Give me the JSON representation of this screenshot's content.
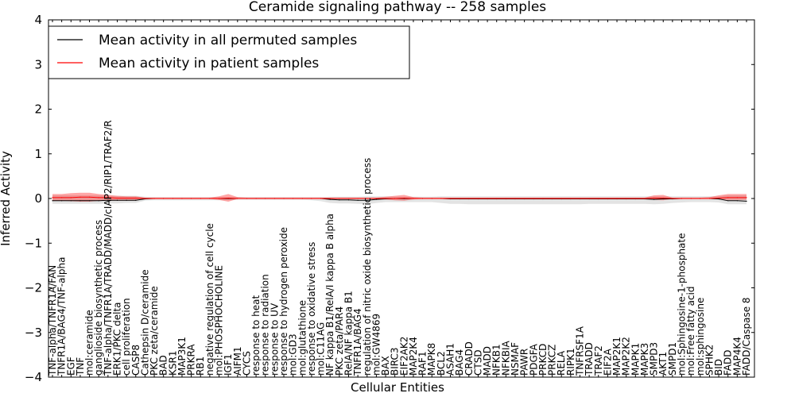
{
  "chart_data": {
    "type": "line",
    "title": "Ceramide signaling pathway -- 258 samples",
    "xlabel": "Cellular Entities",
    "ylabel": "Inferred Activity",
    "ylim": [
      -4,
      4
    ],
    "yticks": [
      -4,
      -3,
      -2,
      -1,
      0,
      1,
      2,
      3,
      4
    ],
    "legend_position": "top-left",
    "categories": [
      "TNF-alpha/TNFR1A/FAN",
      "TNFR1A/BAG4/TNF-alpha",
      "EGF",
      "TNF",
      "mol:ceramide",
      "ganglioside biosynthetic process",
      "TNF-alpha/TNFR1A/TRADD/MADD/cIAP2/RIP1/TRAF2/R",
      "ERK1/PKC delta",
      "cell proliferation",
      "CASP8",
      "Cathepsin D/ceramide",
      "PKC zeta/ceramide",
      "BAD",
      "KSR1",
      "MAP3K1",
      "PRKRA",
      "RB1",
      "negative regulation of cell cycle",
      "mol:PHOSPHOCHOLINE",
      "IGF1",
      "AIFM1",
      "CYCS",
      "response to heat",
      "response to radiation",
      "response to UV",
      "response to hydrogen peroxide",
      "mol:GD3",
      "mol:glutathione",
      "response to oxidative stress",
      "mol:C11AG",
      "NF kappa B1/RelA/I kappa B alpha",
      "PKC zeta/PAR4",
      "RelA/NF kappa B1",
      "TNFR1A/BAG4",
      "regulation of nitric oxide biosynthetic process",
      "mol:GW4869",
      "BAX",
      "BIRC3",
      "EIF2AK2",
      "MAP2K4",
      "RAF1",
      "MAPK8",
      "BCL2",
      "ASAH1",
      "BAG4",
      "CRADD",
      "CTSD",
      "MADD",
      "NFKB1",
      "NFKBIA",
      "NSMAF",
      "PAWR",
      "PDGFA",
      "PRKCD",
      "PRKCZ",
      "RELA",
      "RIPK1",
      "TNFRSF1A",
      "TRADD",
      "TRAF2",
      "EIF2A",
      "MAP2K1",
      "MAP2K2",
      "MAPK1",
      "MAPK3",
      "SMPD3",
      "AKT1",
      "SMPD1",
      "mol:Sphingosine-1-phosphate",
      "mol:Free fatty acid",
      "mol:sphingosine",
      "SPHK2",
      "BID",
      "FADD",
      "MAP4K4",
      "FADD/Caspase 8"
    ],
    "series": [
      {
        "name": "Mean activity in all permuted samples",
        "color": "#000000",
        "values": [
          -0.05,
          -0.05,
          -0.05,
          -0.05,
          -0.05,
          -0.05,
          -0.04,
          -0.04,
          -0.04,
          -0.04,
          -0.01,
          0,
          0,
          0,
          0,
          0,
          0,
          0,
          0,
          0,
          0,
          0,
          0,
          0,
          0,
          0,
          0,
          0,
          0,
          0,
          -0.02,
          -0.03,
          -0.03,
          -0.04,
          -0.04,
          -0.02,
          -0.01,
          0,
          0,
          0,
          0,
          0,
          0,
          -0.01,
          -0.01,
          -0.01,
          -0.01,
          -0.01,
          -0.01,
          -0.01,
          -0.01,
          -0.01,
          -0.01,
          -0.01,
          -0.01,
          -0.01,
          -0.01,
          -0.01,
          -0.01,
          -0.01,
          -0.01,
          -0.01,
          -0.01,
          -0.01,
          -0.01,
          -0.02,
          -0.01,
          -0.01,
          0,
          0,
          0,
          0,
          -0.01,
          -0.05,
          -0.05,
          -0.06
        ],
        "band_low": [
          -0.12,
          -0.12,
          -0.12,
          -0.12,
          -0.12,
          -0.12,
          -0.11,
          -0.11,
          -0.1,
          -0.1,
          -0.05,
          -0.04,
          -0.04,
          -0.04,
          -0.04,
          -0.04,
          -0.04,
          -0.04,
          -0.04,
          -0.04,
          -0.03,
          -0.03,
          -0.03,
          -0.03,
          -0.03,
          -0.03,
          -0.03,
          -0.03,
          -0.04,
          -0.06,
          -0.1,
          -0.11,
          -0.11,
          -0.12,
          -0.13,
          -0.1,
          -0.08,
          -0.08,
          -0.08,
          -0.08,
          -0.08,
          -0.08,
          -0.1,
          -0.12,
          -0.12,
          -0.13,
          -0.13,
          -0.13,
          -0.13,
          -0.13,
          -0.13,
          -0.13,
          -0.13,
          -0.13,
          -0.13,
          -0.13,
          -0.13,
          -0.13,
          -0.12,
          -0.12,
          -0.12,
          -0.12,
          -0.12,
          -0.12,
          -0.12,
          -0.13,
          -0.12,
          -0.1,
          -0.09,
          -0.08,
          -0.08,
          -0.08,
          -0.09,
          -0.13,
          -0.13,
          -0.13
        ],
        "band_high": [
          0.07,
          0.07,
          0.07,
          0.07,
          0.07,
          0.07,
          0.06,
          0.06,
          0.06,
          0.06,
          0.04,
          0.03,
          0.03,
          0.03,
          0.03,
          0.03,
          0.03,
          0.03,
          0.03,
          0.03,
          0.03,
          0.03,
          0.03,
          0.03,
          0.03,
          0.03,
          0.03,
          0.03,
          0.03,
          0.03,
          0.04,
          0.04,
          0.04,
          0.04,
          0.05,
          0.05,
          0.05,
          0.04,
          0.04,
          0.04,
          0.04,
          0.04,
          0.05,
          0.05,
          0.05,
          0.05,
          0.05,
          0.05,
          0.05,
          0.05,
          0.05,
          0.05,
          0.05,
          0.05,
          0.05,
          0.05,
          0.05,
          0.05,
          0.05,
          0.05,
          0.05,
          0.05,
          0.05,
          0.05,
          0.05,
          0.05,
          0.05,
          0.05,
          0.05,
          0.05,
          0.05,
          0.05,
          0.05,
          0.07,
          0.07,
          0.07
        ]
      },
      {
        "name": "Mean activity in patient samples",
        "color": "#ff0000",
        "values": [
          0.02,
          0.02,
          0.02,
          0.03,
          0.03,
          0.02,
          0.02,
          0.01,
          0.01,
          0.01,
          0,
          0,
          0,
          0,
          0,
          0,
          0,
          0,
          0,
          0.01,
          0,
          0,
          0,
          0,
          0,
          0,
          0,
          0,
          0,
          0,
          0,
          0,
          0,
          0,
          0,
          0,
          0,
          0,
          0.01,
          0,
          0,
          0,
          0,
          0,
          0,
          0,
          0,
          0,
          0,
          0,
          0,
          0,
          0,
          0,
          0,
          0,
          0,
          0,
          0,
          0,
          0,
          0,
          0,
          0,
          0,
          0.01,
          0.01,
          0,
          0,
          0,
          0,
          0,
          0.01,
          0.02,
          0.02,
          0.02
        ],
        "band_low": [
          -0.05,
          -0.05,
          -0.06,
          -0.07,
          -0.07,
          -0.05,
          -0.04,
          -0.04,
          -0.04,
          -0.04,
          -0.01,
          -0.01,
          -0.01,
          -0.01,
          -0.01,
          -0.01,
          -0.01,
          -0.01,
          -0.03,
          -0.07,
          -0.01,
          -0.01,
          -0.01,
          -0.01,
          -0.01,
          -0.01,
          -0.01,
          -0.01,
          -0.01,
          -0.01,
          -0.01,
          -0.01,
          -0.01,
          -0.01,
          -0.01,
          -0.01,
          -0.02,
          -0.04,
          -0.05,
          -0.02,
          -0.01,
          -0.01,
          -0.01,
          -0.01,
          -0.01,
          -0.01,
          -0.01,
          -0.01,
          -0.01,
          -0.01,
          -0.01,
          -0.01,
          -0.01,
          -0.01,
          -0.01,
          -0.01,
          -0.01,
          -0.01,
          -0.01,
          -0.01,
          -0.01,
          -0.01,
          -0.01,
          -0.01,
          -0.01,
          -0.03,
          -0.04,
          -0.01,
          -0.01,
          -0.01,
          -0.01,
          -0.01,
          -0.02,
          -0.03,
          -0.03,
          -0.03
        ],
        "band_high": [
          0.1,
          0.1,
          0.12,
          0.13,
          0.13,
          0.1,
          0.08,
          0.06,
          0.05,
          0.05,
          0.02,
          0.02,
          0.02,
          0.02,
          0.02,
          0.02,
          0.02,
          0.02,
          0.05,
          0.1,
          0.03,
          0.02,
          0.02,
          0.02,
          0.02,
          0.02,
          0.02,
          0.02,
          0.02,
          0.02,
          0.02,
          0.02,
          0.02,
          0.02,
          0.02,
          0.02,
          0.04,
          0.06,
          0.08,
          0.03,
          0.02,
          0.02,
          0.02,
          0.02,
          0.02,
          0.02,
          0.02,
          0.02,
          0.02,
          0.02,
          0.02,
          0.02,
          0.02,
          0.02,
          0.02,
          0.02,
          0.02,
          0.02,
          0.02,
          0.02,
          0.02,
          0.02,
          0.02,
          0.02,
          0.02,
          0.07,
          0.08,
          0.02,
          0.02,
          0.02,
          0.02,
          0.03,
          0.07,
          0.1,
          0.1,
          0.1
        ]
      }
    ]
  }
}
